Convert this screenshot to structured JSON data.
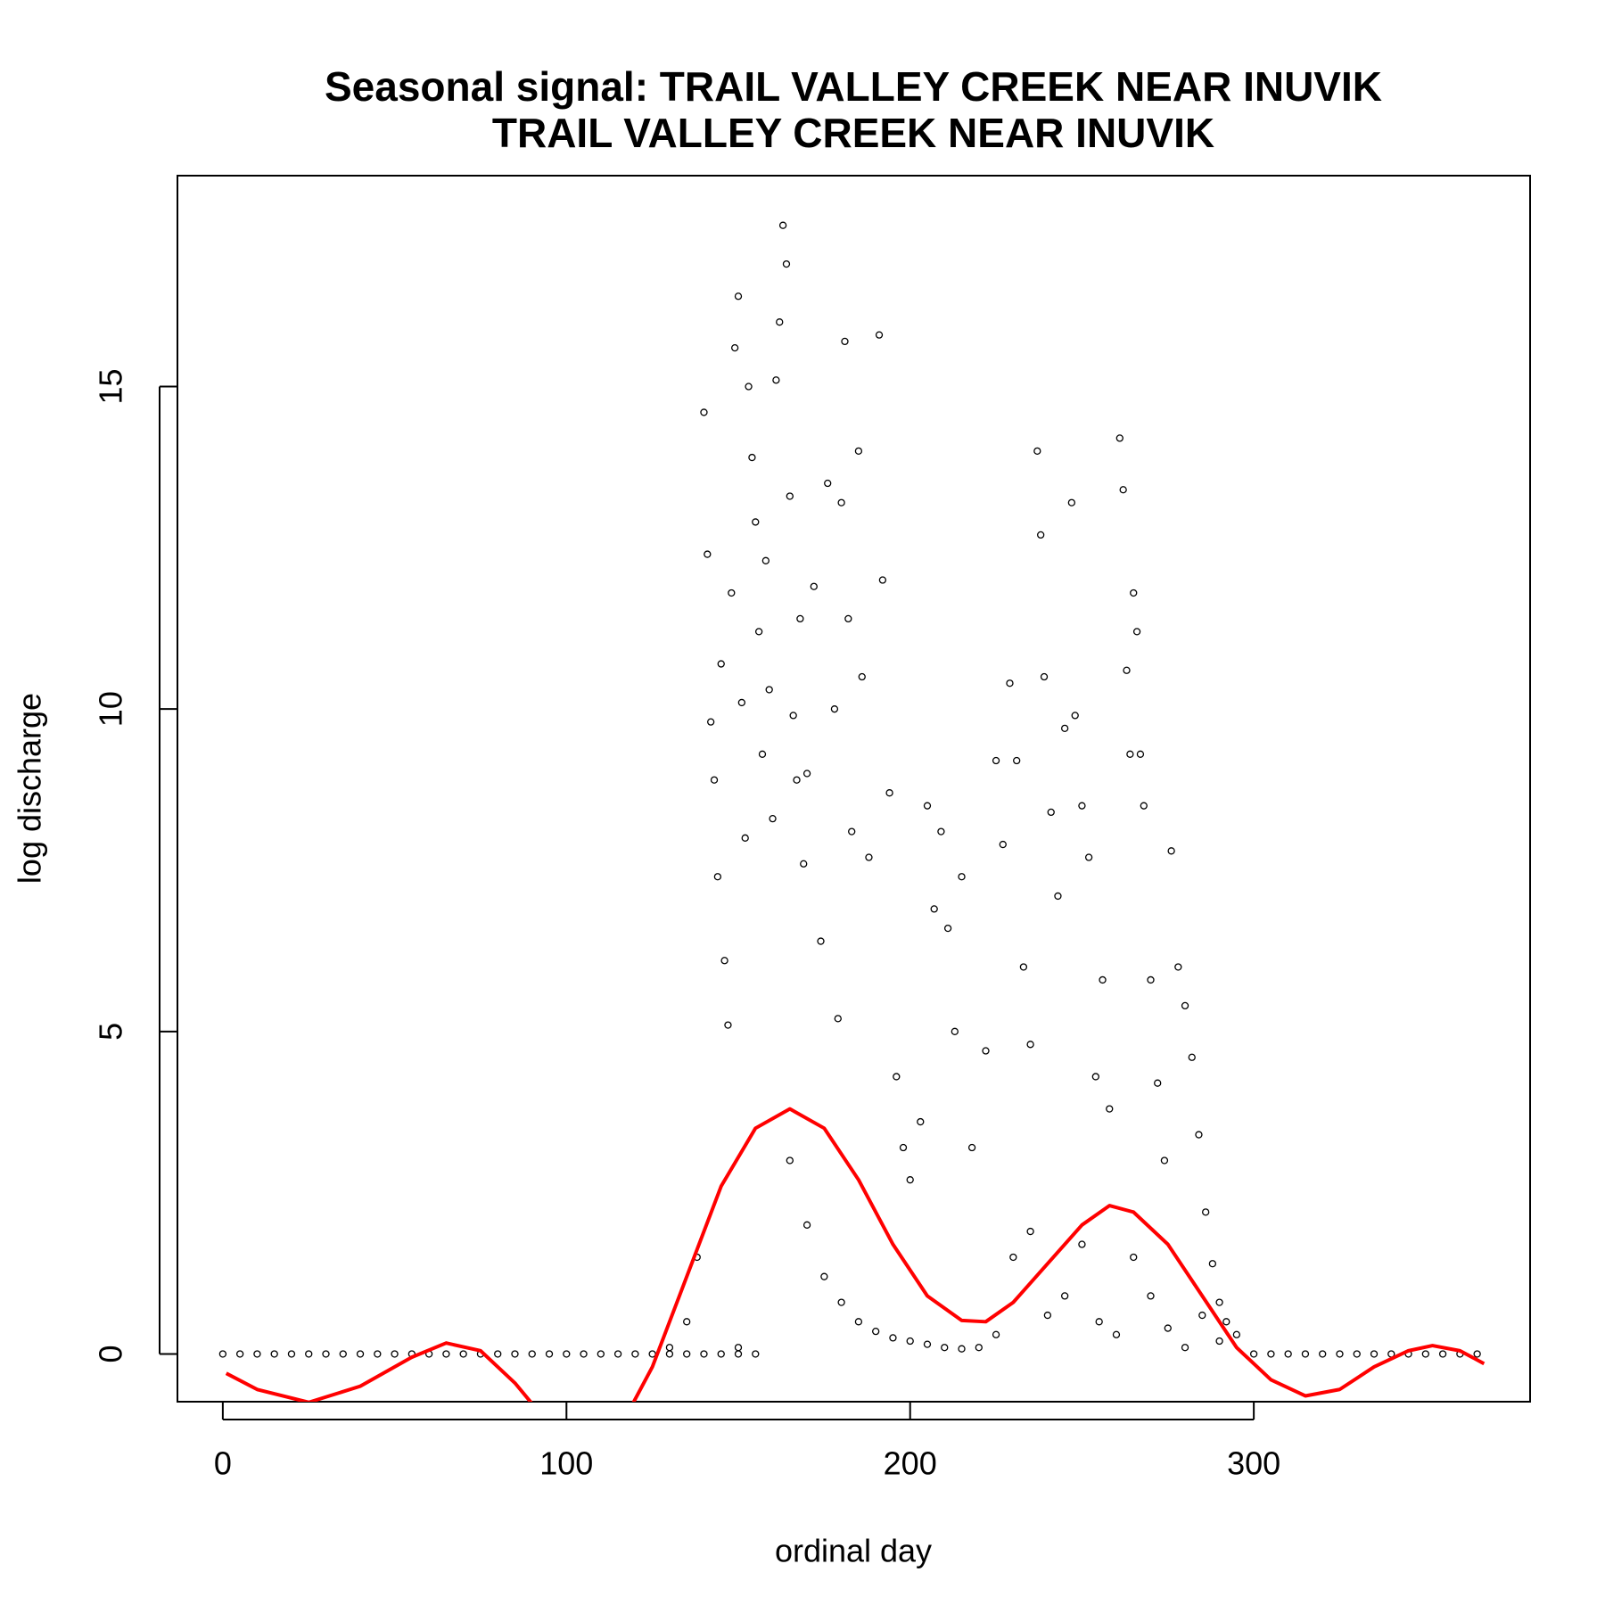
{
  "chart_data": {
    "type": "scatter",
    "title": [
      "Seasonal signal: TRAIL VALLEY CREEK NEAR INUVIK",
      "TRAIL VALLEY CREEK NEAR INUVIK"
    ],
    "x_label": "ordinal day",
    "y_label": "log discharge",
    "xlim": [
      -13.2,
      380.4
    ],
    "ylim": [
      -0.74,
      18.27
    ],
    "xticks": [
      0,
      100,
      200,
      300
    ],
    "yticks": [
      0,
      5,
      10,
      15
    ],
    "series": [
      {
        "type": "scatter",
        "color": "#000000",
        "x": [
          0,
          5,
          10,
          15,
          20,
          25,
          30,
          35,
          40,
          45,
          50,
          55,
          60,
          65,
          70,
          75,
          80,
          85,
          90,
          95,
          100,
          105,
          110,
          115,
          120,
          125,
          130,
          135,
          140,
          145,
          150,
          155,
          300,
          305,
          310,
          315,
          320,
          325,
          330,
          335,
          340,
          345,
          350,
          355,
          360,
          365,
          140,
          141,
          142,
          143,
          144,
          145,
          146,
          147,
          148,
          149,
          150,
          151,
          152,
          153,
          154,
          155,
          156,
          157,
          158,
          159,
          160,
          161,
          162,
          163,
          164,
          165,
          166,
          167,
          168,
          169,
          170,
          172,
          174,
          176,
          178,
          179,
          180,
          181,
          182,
          183,
          185,
          186,
          188,
          191,
          192,
          194,
          196,
          198,
          200,
          203,
          205,
          207,
          209,
          211,
          213,
          215,
          218,
          222,
          225,
          227,
          229,
          231,
          233,
          235,
          237,
          238,
          239,
          241,
          243,
          245,
          247,
          248,
          250,
          252,
          254,
          256,
          258,
          261,
          262,
          263,
          264,
          265,
          266,
          267,
          268,
          270,
          272,
          274,
          276,
          278,
          280,
          282,
          284,
          286,
          288,
          290,
          292,
          295,
          165,
          170,
          175,
          180,
          185,
          190,
          195,
          200,
          205,
          210,
          215,
          220,
          225,
          230,
          235,
          240,
          245,
          250,
          255,
          260,
          265,
          270,
          275,
          280,
          285,
          290,
          130,
          135,
          138,
          150
        ],
        "values": [
          0,
          0,
          0,
          0,
          0,
          0,
          0,
          0,
          0,
          0,
          0,
          0,
          0,
          0,
          0,
          0,
          0,
          0,
          0,
          0,
          0,
          0,
          0,
          0,
          0,
          0,
          0,
          0,
          0,
          0,
          0,
          0,
          0,
          0,
          0,
          0,
          0,
          0,
          0,
          0,
          0,
          0,
          0,
          0,
          0,
          0,
          14.6,
          12.4,
          9.8,
          8.9,
          7.4,
          10.7,
          6.1,
          5.1,
          11.8,
          15.6,
          16.4,
          10.1,
          8.0,
          15.0,
          13.9,
          12.9,
          11.2,
          9.3,
          12.3,
          10.3,
          8.3,
          15.1,
          16.0,
          17.5,
          16.9,
          13.3,
          9.9,
          8.9,
          11.4,
          7.6,
          9.0,
          11.9,
          6.4,
          13.5,
          10.0,
          5.2,
          13.2,
          15.7,
          11.4,
          8.1,
          14.0,
          10.5,
          7.7,
          15.8,
          12.0,
          8.7,
          4.3,
          3.2,
          2.7,
          3.6,
          8.5,
          6.9,
          8.1,
          6.6,
          5.0,
          7.4,
          3.2,
          4.7,
          9.2,
          7.9,
          10.4,
          9.2,
          6.0,
          4.8,
          14.0,
          12.7,
          10.5,
          8.4,
          7.1,
          9.7,
          13.2,
          9.9,
          8.5,
          7.7,
          4.3,
          5.8,
          3.8,
          14.2,
          13.4,
          10.6,
          9.3,
          11.8,
          11.2,
          9.3,
          8.5,
          5.8,
          4.2,
          3.0,
          7.8,
          6.0,
          5.4,
          4.6,
          3.4,
          2.2,
          1.4,
          0.8,
          0.5,
          0.3,
          3.0,
          2.0,
          1.2,
          0.8,
          0.5,
          0.35,
          0.25,
          0.2,
          0.15,
          0.1,
          0.08,
          0.1,
          0.3,
          1.5,
          1.9,
          0.6,
          0.9,
          1.7,
          0.5,
          0.3,
          1.5,
          0.9,
          0.4,
          0.1,
          0.6,
          0.2,
          0.1,
          0.5,
          1.5,
          0.1
        ]
      },
      {
        "type": "line",
        "color": "#ff0000",
        "x": [
          1,
          10,
          25,
          40,
          55,
          65,
          75,
          85,
          92,
          100,
          110,
          118,
          125,
          135,
          145,
          155,
          165,
          175,
          185,
          195,
          205,
          215,
          222,
          230,
          240,
          250,
          258,
          265,
          275,
          285,
          295,
          305,
          315,
          325,
          335,
          345,
          352,
          360,
          367
        ],
        "values": [
          -0.3,
          -0.55,
          -0.75,
          -0.5,
          -0.05,
          0.17,
          0.05,
          -0.45,
          -0.9,
          -1.4,
          -1.3,
          -0.9,
          -0.2,
          1.2,
          2.6,
          3.5,
          3.8,
          3.5,
          2.7,
          1.7,
          0.9,
          0.52,
          0.5,
          0.8,
          1.4,
          2.0,
          2.3,
          2.2,
          1.7,
          0.9,
          0.1,
          -0.4,
          -0.65,
          -0.55,
          -0.2,
          0.05,
          0.13,
          0.05,
          -0.15
        ]
      }
    ]
  }
}
